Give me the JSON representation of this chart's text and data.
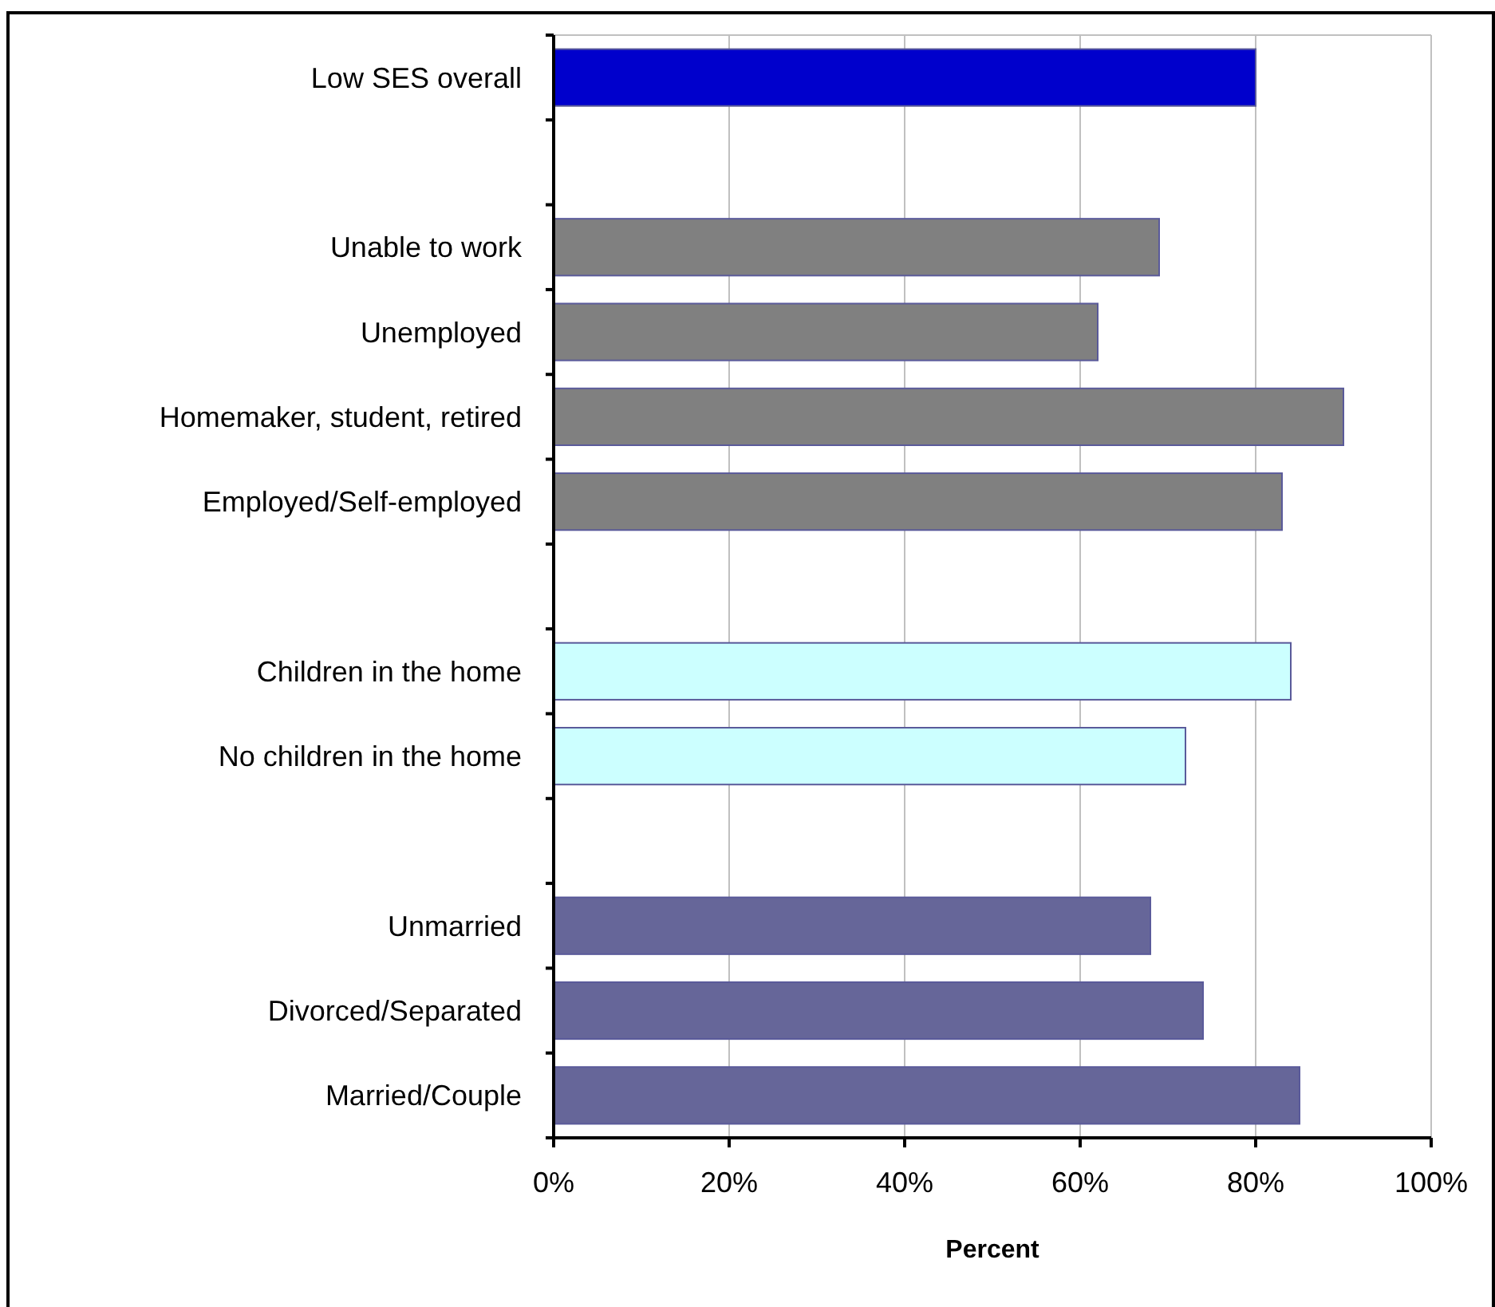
{
  "chart_data": {
    "type": "bar",
    "orientation": "horizontal",
    "xlabel": "Percent",
    "categories": [
      "Low SES overall",
      null,
      "Unable to work",
      "Unemployed",
      "Homemaker, student, retired",
      "Employed/Self-employed",
      null,
      "Children in the home",
      "No children in the home",
      null,
      "Unmarried",
      "Divorced/Separated",
      "Married/Couple"
    ],
    "values": [
      80,
      null,
      69,
      62,
      90,
      83,
      null,
      84,
      72,
      null,
      68,
      74,
      85
    ],
    "colors": [
      "#0000cc",
      null,
      "#808080",
      "#808080",
      "#808080",
      "#808080",
      null,
      "#ccffff",
      "#ccffff",
      null,
      "#666699",
      "#666699",
      "#666699"
    ],
    "xlim": [
      0,
      100
    ],
    "xticks": [
      {
        "value": 0,
        "label": "0%"
      },
      {
        "value": 20,
        "label": "20%"
      },
      {
        "value": 40,
        "label": "40%"
      },
      {
        "value": 60,
        "label": "60%"
      },
      {
        "value": 80,
        "label": "80%"
      },
      {
        "value": 100,
        "label": "100%"
      }
    ],
    "grid": "x"
  }
}
